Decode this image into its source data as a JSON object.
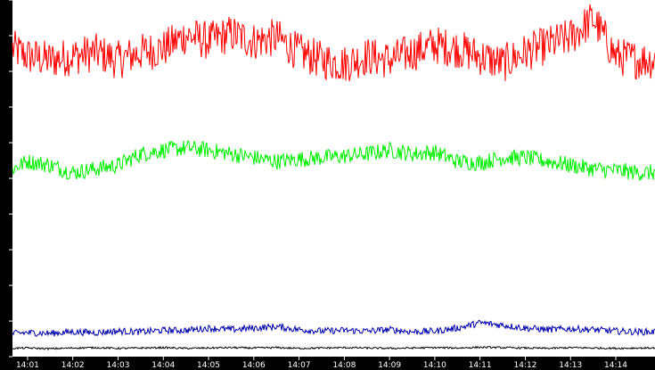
{
  "chart_data": {
    "type": "line",
    "title": "",
    "xlabel": "",
    "ylabel": "",
    "ylim": [
      0,
      4749
    ],
    "y_ticks": [
      "0",
      "474",
      "949",
      "1424",
      "1899",
      "2374",
      "2849",
      "3324",
      "3799",
      "4274",
      "4749"
    ],
    "x_ticks": [
      "14:01",
      "14:02",
      "14:03",
      "14:04",
      "14:05",
      "14:06",
      "14:07",
      "14:08",
      "14:09",
      "14:10",
      "14:11",
      "14:12",
      "14:13",
      "14:14"
    ],
    "grid": false,
    "legend": "none",
    "colors": {
      "background": "#ffffff",
      "axis_band": "#000000",
      "tick_text": "#ffffff",
      "y_label_text": "#000000"
    },
    "series": [
      {
        "color": "#ff0000",
        "x": [
          "14:00:30",
          "14:01",
          "14:01:30",
          "14:02",
          "14:02:30",
          "14:03",
          "14:03:30",
          "14:04",
          "14:04:30",
          "14:05",
          "14:05:30",
          "14:06",
          "14:06:30",
          "14:07",
          "14:07:30",
          "14:08",
          "14:08:30",
          "14:09",
          "14:09:30",
          "14:10",
          "14:10:30",
          "14:11",
          "14:11:30",
          "14:12",
          "14:12:30",
          "14:13",
          "14:13:30",
          "14:14",
          "14:14:30"
        ],
        "values": [
          4150,
          4000,
          3950,
          4000,
          4050,
          3950,
          4050,
          4100,
          4280,
          4200,
          4300,
          4200,
          4250,
          4050,
          3950,
          3900,
          4000,
          3950,
          4050,
          4150,
          4100,
          4000,
          3900,
          4050,
          4150,
          4250,
          4500,
          4000,
          3950
        ]
      },
      {
        "color": "#00ee00",
        "x": [
          "14:00:30",
          "14:01",
          "14:01:30",
          "14:02",
          "14:02:30",
          "14:03",
          "14:03:30",
          "14:04",
          "14:04:30",
          "14:05",
          "14:05:30",
          "14:06",
          "14:06:30",
          "14:07",
          "14:07:30",
          "14:08",
          "14:08:30",
          "14:09",
          "14:09:30",
          "14:10",
          "14:10:30",
          "14:11",
          "14:11:30",
          "14:12",
          "14:12:30",
          "14:13",
          "14:13:30",
          "14:14",
          "14:14:30"
        ],
        "values": [
          2450,
          2600,
          2550,
          2450,
          2500,
          2550,
          2700,
          2750,
          2780,
          2750,
          2700,
          2650,
          2600,
          2630,
          2650,
          2670,
          2700,
          2750,
          2700,
          2720,
          2600,
          2580,
          2650,
          2650,
          2600,
          2550,
          2500,
          2480,
          2450
        ]
      },
      {
        "color": "#0000aa",
        "x": [
          "14:00:30",
          "14:01",
          "14:01:30",
          "14:02",
          "14:02:30",
          "14:03",
          "14:03:30",
          "14:04",
          "14:04:30",
          "14:05",
          "14:05:30",
          "14:06",
          "14:06:30",
          "14:07",
          "14:07:30",
          "14:08",
          "14:08:30",
          "14:09",
          "14:09:30",
          "14:10",
          "14:10:30",
          "14:11",
          "14:11:30",
          "14:12",
          "14:12:30",
          "14:13",
          "14:13:30",
          "14:14",
          "14:14:30"
        ],
        "values": [
          300,
          320,
          310,
          330,
          320,
          340,
          330,
          350,
          350,
          380,
          360,
          380,
          400,
          360,
          340,
          350,
          340,
          360,
          330,
          340,
          380,
          450,
          420,
          380,
          360,
          370,
          360,
          340,
          330
        ]
      },
      {
        "color": "#000000",
        "x": [
          "14:00:30",
          "14:01",
          "14:01:30",
          "14:02",
          "14:02:30",
          "14:03",
          "14:03:30",
          "14:04",
          "14:04:30",
          "14:05",
          "14:05:30",
          "14:06",
          "14:06:30",
          "14:07",
          "14:07:30",
          "14:08",
          "14:08:30",
          "14:09",
          "14:09:30",
          "14:10",
          "14:10:30",
          "14:11",
          "14:11:30",
          "14:12",
          "14:12:30",
          "14:13",
          "14:13:30",
          "14:14",
          "14:14:30"
        ],
        "values": [
          110,
          115,
          105,
          115,
          120,
          110,
          115,
          120,
          110,
          115,
          120,
          115,
          120,
          110,
          115,
          120,
          115,
          110,
          115,
          120,
          115,
          125,
          120,
          115,
          110,
          120,
          115,
          110,
          115
        ]
      }
    ]
  }
}
